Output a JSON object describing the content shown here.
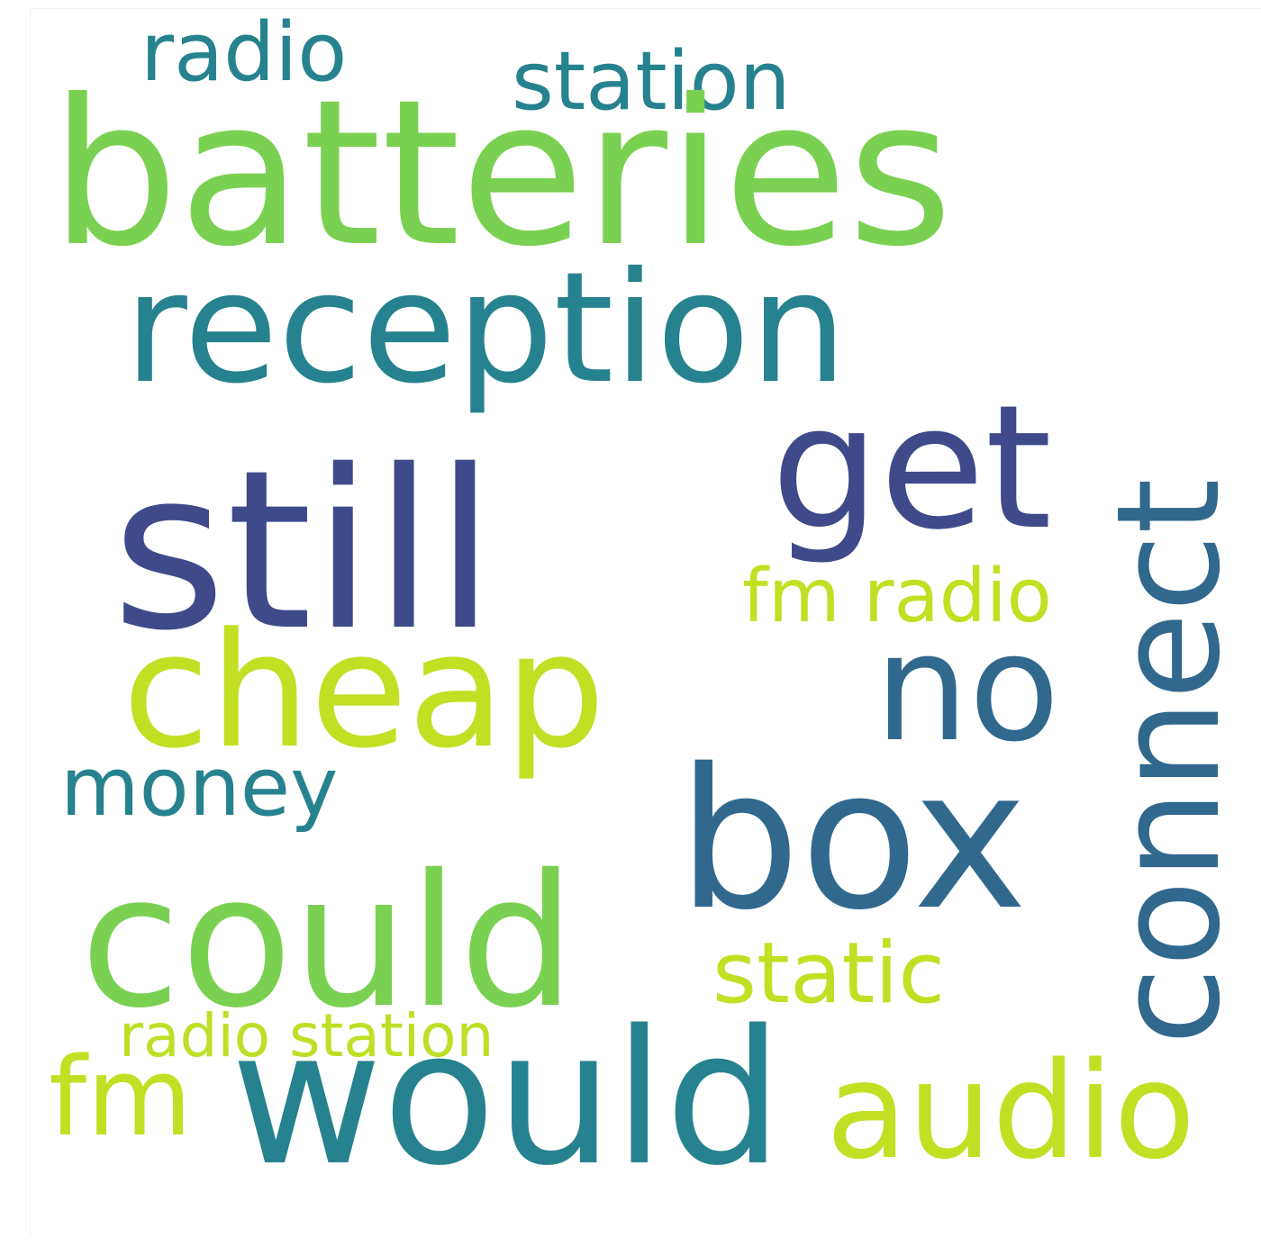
{
  "colors": {
    "background": "#ffffff",
    "navy": "#3e4a89",
    "teal": "#26828e",
    "slate_teal": "#31688e",
    "green": "#7ad151",
    "lime": "#c2df23",
    "yellow_green": "#bddf26"
  },
  "words": {
    "batteries": "batteries",
    "reception": "reception",
    "still": "still",
    "get": "get",
    "connect": "connect",
    "cheap": "cheap",
    "no": "no",
    "box": "box",
    "could": "could",
    "would": "would",
    "audio": "audio",
    "fm": "fm",
    "static": "static",
    "fm_radio": "fm radio",
    "money": "money",
    "radio": "radio",
    "station": "station",
    "radio_station": "radio station"
  }
}
